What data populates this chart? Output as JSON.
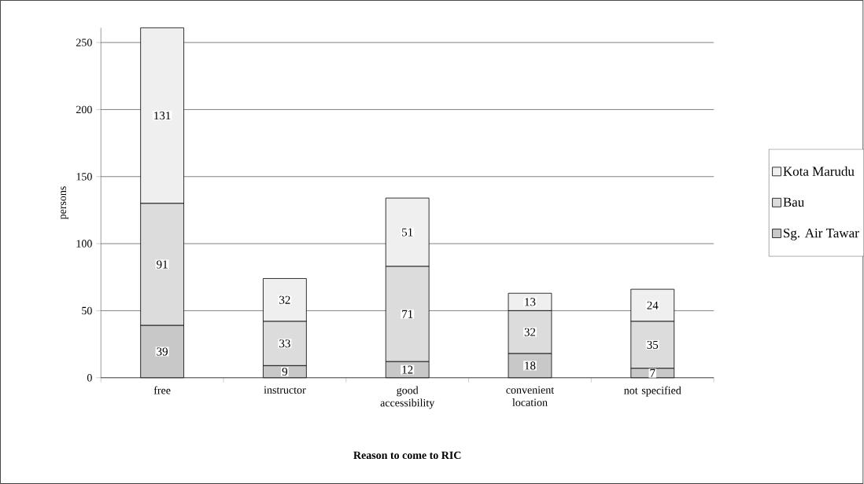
{
  "chart_data": {
    "type": "bar",
    "stacked": true,
    "xlabel": "Reason to come to RIC",
    "ylabel": "persons",
    "categories": [
      "free",
      "instructor",
      "good accessibility",
      "convenient location",
      "not specified"
    ],
    "series": [
      {
        "name": "Sg. Air Tawar",
        "color": "#c8c8c8",
        "values": [
          39,
          9,
          12,
          18,
          7
        ]
      },
      {
        "name": "Bau",
        "color": "#dcdcdc",
        "values": [
          91,
          33,
          71,
          32,
          35
        ]
      },
      {
        "name": "Kota Marudu",
        "color": "#efefef",
        "values": [
          131,
          32,
          51,
          13,
          24
        ]
      }
    ],
    "ylim": [
      0,
      261
    ],
    "yticks": [
      0,
      50,
      100,
      150,
      200,
      250
    ],
    "grid": "y",
    "legend": "right",
    "data_labels": true
  }
}
